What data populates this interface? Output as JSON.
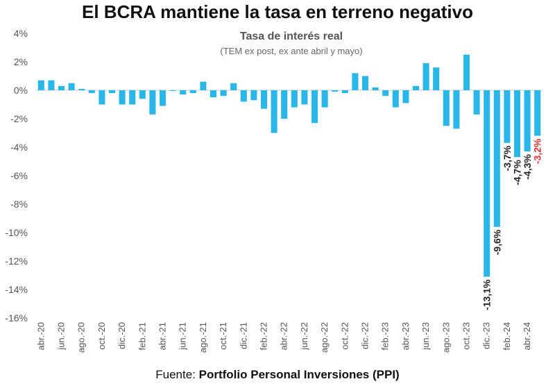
{
  "header": {
    "title": "El BCRA mantiene la tasa en terreno negativo",
    "subtitle": "Tasa de interés real",
    "note": "(TEM ex post, ex ante abril y mayo)"
  },
  "footer": {
    "source_prefix": "Fuente: ",
    "source_name": "Portfolio Personal Inversiones (PPI)"
  },
  "colors": {
    "bar": "#29b6e8",
    "axis": "#cccccc",
    "label": "#222222",
    "highlight_label": "#e03030"
  },
  "chart_data": {
    "type": "bar",
    "title": "Tasa de interés real",
    "subtitle": "(TEM ex post, ex ante abril y mayo)",
    "ylabel": "",
    "xlabel": "",
    "ylim": [
      -16,
      4
    ],
    "y_ticks": [
      4,
      2,
      0,
      -2,
      -4,
      -6,
      -8,
      -10,
      -12,
      -14,
      -16
    ],
    "y_tick_labels": [
      "4%",
      "2%",
      "0%",
      "-2%",
      "-4%",
      "-6%",
      "-8%",
      "-10%",
      "-12%",
      "-14%",
      "-16%"
    ],
    "categories": [
      "abr.-20",
      "may.-20",
      "jun.-20",
      "jul.-20",
      "ago.-20",
      "sep.-20",
      "oct.-20",
      "nov.-20",
      "dic.-20",
      "ene.-21",
      "feb.-21",
      "mar.-21",
      "abr.-21",
      "may.-21",
      "jun.-21",
      "jul.-21",
      "ago.-21",
      "sep.-21",
      "oct.-21",
      "nov.-21",
      "dic.-21",
      "ene.-22",
      "feb.-22",
      "mar.-22",
      "abr.-22",
      "may.-22",
      "jun.-22",
      "jul.-22",
      "ago.-22",
      "sep.-22",
      "oct.-22",
      "nov.-22",
      "dic.-22",
      "ene.-23",
      "feb.-23",
      "mar.-23",
      "abr.-23",
      "may.-23",
      "jun.-23",
      "jul.-23",
      "ago.-23",
      "sep.-23",
      "oct.-23",
      "nov.-23",
      "dic.-23",
      "ene.-24",
      "feb.-24",
      "mar.-24",
      "abr.-24",
      "may.-24"
    ],
    "x_tick_labels": [
      "abr.-20",
      "jun.-20",
      "ago.-20",
      "oct.-20",
      "dic.-20",
      "feb.-21",
      "abr.-21",
      "jun.-21",
      "ago.-21",
      "oct.-21",
      "dic.-21",
      "feb.-22",
      "abr.-22",
      "jun.-22",
      "ago.-22",
      "oct.-22",
      "dic.-22",
      "feb.-23",
      "abr.-23",
      "jun.-23",
      "ago.-23",
      "oct.-23",
      "dic.-23",
      "feb.-24",
      "abr.-24"
    ],
    "values": [
      0.7,
      0.7,
      0.3,
      0.5,
      0.1,
      -0.2,
      -1.0,
      -0.2,
      -1.0,
      -1.0,
      -0.6,
      -1.7,
      -1.1,
      0.0,
      -0.3,
      -0.2,
      0.6,
      -0.5,
      -0.4,
      0.5,
      -0.8,
      -0.7,
      -1.3,
      -3.0,
      -2.0,
      -1.2,
      -1.0,
      -2.3,
      -1.2,
      -0.1,
      -0.2,
      1.2,
      1.0,
      0.2,
      -0.4,
      -1.2,
      -0.9,
      0.3,
      1.9,
      1.6,
      -2.5,
      -2.7,
      2.5,
      -1.7,
      -13.1,
      -9.6,
      -3.7,
      -4.7,
      -4.3,
      -3.2
    ],
    "data_labels": [
      {
        "index": 44,
        "text": "-13,1%",
        "color": "#222222"
      },
      {
        "index": 45,
        "text": "-9,6%",
        "color": "#222222"
      },
      {
        "index": 46,
        "text": "-3,7%",
        "color": "#222222"
      },
      {
        "index": 47,
        "text": "-4,7%",
        "color": "#222222"
      },
      {
        "index": 48,
        "text": "-4,3%",
        "color": "#222222"
      },
      {
        "index": 49,
        "text": "-3,2%",
        "color": "#e03030"
      }
    ],
    "grid": false,
    "legend": "none"
  }
}
